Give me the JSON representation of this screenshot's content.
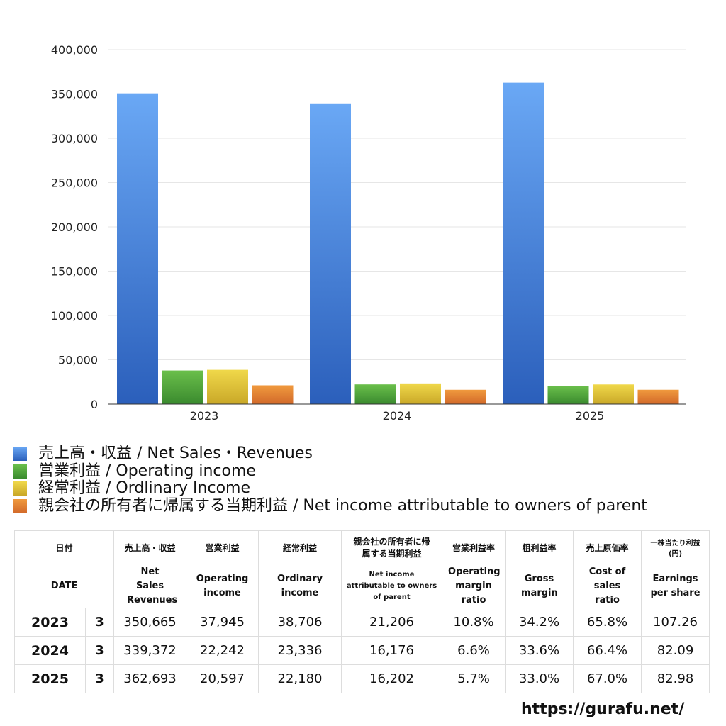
{
  "chart_data": {
    "type": "bar",
    "categories": [
      "2023",
      "2024",
      "2025"
    ],
    "series": [
      {
        "name": "売上高・収益 / Net Sales・Revenues",
        "values": [
          350665,
          339372,
          362693
        ],
        "color": [
          "#6aa8f5",
          "#2b5fbb"
        ]
      },
      {
        "name": "営業利益 / Operating income",
        "values": [
          37945,
          22242,
          20597
        ],
        "color": [
          "#6abf4b",
          "#3a8a2e"
        ]
      },
      {
        "name": "経常利益 / Ordlinary Income",
        "values": [
          38706,
          23336,
          22180
        ],
        "color": [
          "#f0d84a",
          "#c9a828"
        ]
      },
      {
        "name": "親会社の所有者に帰属する当期利益 / Net income attributable to owners of parent",
        "values": [
          21206,
          16176,
          16202
        ],
        "color": [
          "#f09a3e",
          "#d2692a"
        ]
      }
    ],
    "ylim": [
      0,
      400000
    ],
    "yticks": [
      "0",
      "50,000",
      "100,000",
      "150,000",
      "200,000",
      "250,000",
      "300,000",
      "350,000",
      "400,000"
    ],
    "grid": true,
    "legend": "bottom"
  },
  "table": {
    "header_jp": [
      "日付",
      "売上高・収益",
      "営業利益",
      "経常利益",
      "親会社の所有者に帰属する当期利益",
      "営業利益率",
      "粗利益率",
      "売上原価率",
      "一株当たり利益(円)"
    ],
    "header_en": [
      "DATE",
      "Net Sales Revenues",
      "Operating income",
      "Ordinary income",
      "Net income attributable to owners of parent",
      "Operating margin ratio",
      "Gross margin",
      "Cost of sales ratio",
      "Earnings per share"
    ],
    "rows": [
      [
        "2023",
        "3",
        "350,665",
        "37,945",
        "38,706",
        "21,206",
        "10.8%",
        "34.2%",
        "65.8%",
        "107.26"
      ],
      [
        "2024",
        "3",
        "339,372",
        "22,242",
        "23,336",
        "16,176",
        "6.6%",
        "33.6%",
        "66.4%",
        "82.09"
      ],
      [
        "2025",
        "3",
        "362,693",
        "20,597",
        "22,180",
        "16,202",
        "5.7%",
        "33.0%",
        "67.0%",
        "82.98"
      ]
    ]
  },
  "footer": "https://gurafu.net/"
}
